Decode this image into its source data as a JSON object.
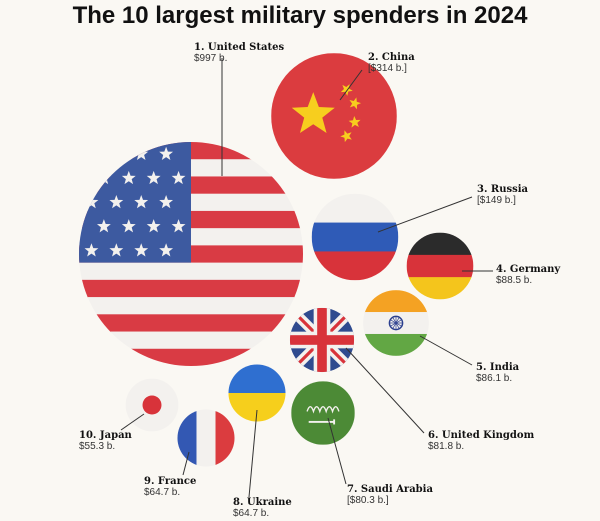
{
  "chart_data": {
    "type": "bubble",
    "title": "The 10 largest military spenders in 2024",
    "unit": "US$ billions",
    "points": [
      {
        "rank": 1,
        "name": "1. United States",
        "value_label": "$997 b.",
        "value": 997,
        "flag": "us-flag-icon"
      },
      {
        "rank": 2,
        "name": "2. China",
        "value_label": "[$314 b.]",
        "value": 314,
        "flag": "china-flag-icon"
      },
      {
        "rank": 3,
        "name": "3. Russia",
        "value_label": "[$149 b.]",
        "value": 149,
        "flag": "russia-flag-icon"
      },
      {
        "rank": 4,
        "name": "4. Germany",
        "value_label": "$88.5 b.",
        "value": 88.5,
        "flag": "germany-flag-icon"
      },
      {
        "rank": 5,
        "name": "5. India",
        "value_label": "$86.1 b.",
        "value": 86.1,
        "flag": "india-flag-icon"
      },
      {
        "rank": 6,
        "name": "6. United Kingdom",
        "value_label": "$81.8 b.",
        "value": 81.8,
        "flag": "uk-flag-icon"
      },
      {
        "rank": 7,
        "name": "7. Saudi Arabia",
        "value_label": "[$80.3 b.]",
        "value": 80.3,
        "flag": "saudi-flag-icon"
      },
      {
        "rank": 8,
        "name": "8. Ukraine",
        "value_label": "$64.7 b.",
        "value": 64.7,
        "flag": "ukraine-flag-icon"
      },
      {
        "rank": 9,
        "name": "9. France",
        "value_label": "$64.7 b.",
        "value": 64.7,
        "flag": "france-flag-icon"
      },
      {
        "rank": 10,
        "name": "10. Japan",
        "value_label": "$55.3 b.",
        "value": 55.3,
        "flag": "japan-flag-icon"
      }
    ]
  },
  "colors": {
    "us_red": "#d93b44",
    "us_blue": "#3d5aa0",
    "china_red": "#db3c3f",
    "china_yellow": "#f7ce1e",
    "russia_blue": "#2f5bb7",
    "russia_red": "#d8333a",
    "germany_black": "#2b2b2b",
    "germany_red": "#d8333a",
    "germany_gold": "#f4c51c",
    "india_saffron": "#f4a223",
    "india_green": "#62a744",
    "india_chakra": "#2b3f8f",
    "uk_blue": "#2f4b8f",
    "uk_red": "#d8333a",
    "saudi_green": "#4c8a36",
    "ukraine_blue": "#2f6fd0",
    "ukraine_yellow": "#f6cf1c",
    "france_blue": "#3358b3",
    "france_red": "#db3c3f",
    "japan_red": "#d8333a",
    "flag_white": "#f3f1ee"
  }
}
